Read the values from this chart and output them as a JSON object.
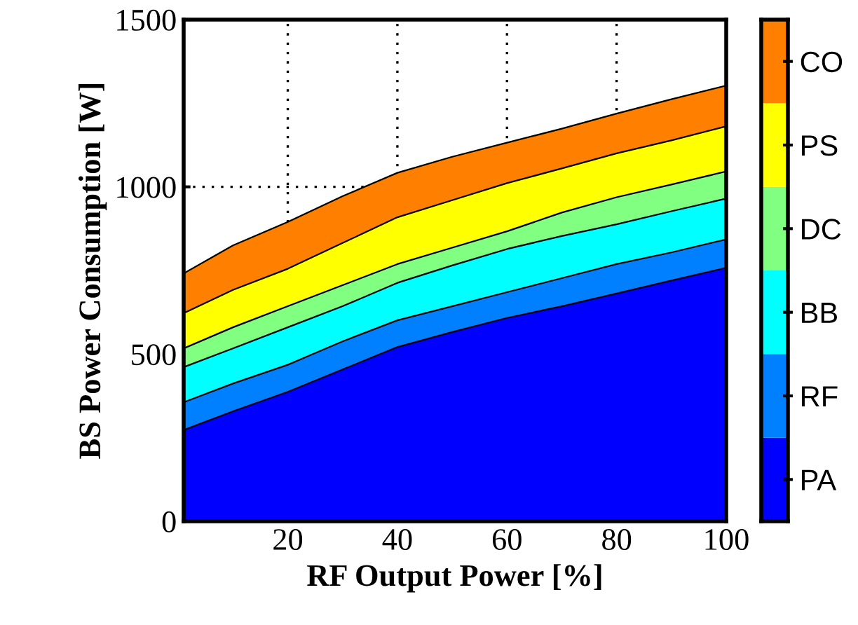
{
  "chart_data": {
    "type": "area",
    "stacked": true,
    "xlabel": "RF Output Power [%]",
    "ylabel": "BS Power Consumption [W]",
    "x": [
      1,
      10,
      20,
      30,
      40,
      50,
      60,
      70,
      80,
      90,
      100
    ],
    "series": [
      {
        "name": "PA",
        "color": "#0000ff",
        "values": [
          273,
          329,
          387,
          454,
          521,
          566,
          608,
          643,
          681,
          720,
          758
        ]
      },
      {
        "name": "RF",
        "color": "#0080ff",
        "values": [
          83,
          83,
          81,
          84,
          80,
          77,
          77,
          84,
          88,
          84,
          85
        ]
      },
      {
        "name": "BB",
        "color": "#00ffff",
        "values": [
          105,
          105,
          112,
          105,
          112,
          122,
          129,
          126,
          119,
          123,
          122
        ]
      },
      {
        "name": "DC",
        "color": "#80ff80",
        "values": [
          56,
          63,
          63,
          63,
          56,
          53,
          53,
          70,
          81,
          80,
          81
        ]
      },
      {
        "name": "PS",
        "color": "#ffff00",
        "values": [
          105,
          112,
          112,
          126,
          140,
          142,
          144,
          132,
          131,
          132,
          135
        ]
      },
      {
        "name": "CO",
        "color": "#ff8000",
        "values": [
          119,
          133,
          140,
          140,
          133,
          130,
          121,
          119,
          119,
          123,
          122
        ]
      }
    ],
    "xlim": [
      1,
      100
    ],
    "xticks": [
      20,
      40,
      60,
      80,
      100
    ],
    "ylim": [
      0,
      1500
    ],
    "yticks": [
      0,
      500,
      1000,
      1500
    ],
    "grid": true,
    "legend": "right"
  }
}
